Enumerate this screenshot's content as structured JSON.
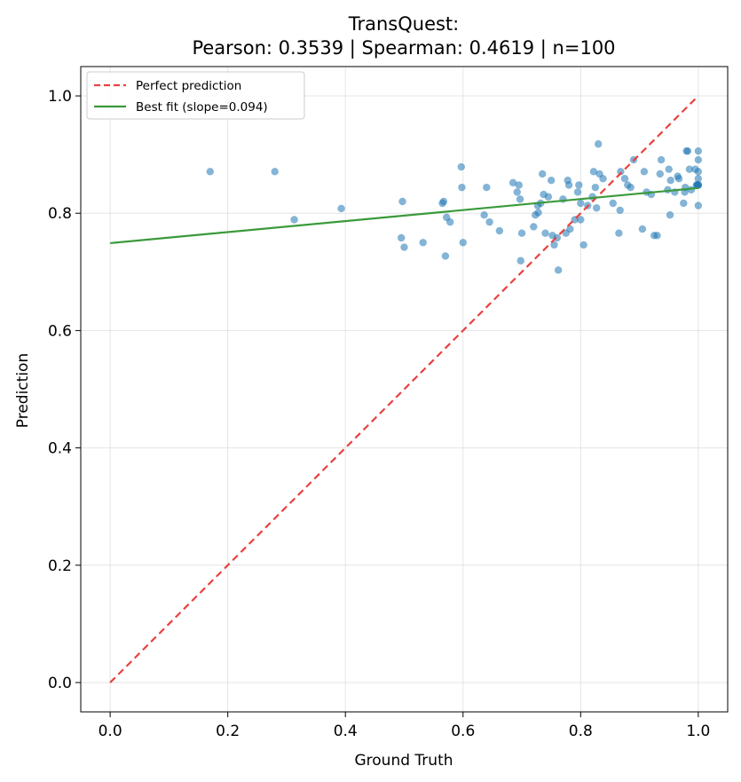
{
  "chart_data": {
    "type": "scatter",
    "title": "TransQuest:",
    "subtitle": "Pearson: 0.3539 | Spearman: 0.4619 | n=100",
    "xlabel": "Ground Truth",
    "ylabel": "Prediction",
    "xlim": [
      -0.05,
      1.05
    ],
    "ylim": [
      -0.05,
      1.05
    ],
    "xticks": [
      "0.0",
      "0.2",
      "0.4",
      "0.6",
      "0.8",
      "1.0"
    ],
    "yticks": [
      "0.0",
      "0.2",
      "0.4",
      "0.6",
      "0.8",
      "1.0"
    ],
    "grid": true,
    "legend_position": "top-left",
    "legend": [
      "Perfect prediction",
      "Best fit (slope=0.094)"
    ],
    "colors": {
      "points": "#1f77b4",
      "perfect_line": "#e8413e",
      "fit_line": "#3a9a3a"
    },
    "perfect_line": {
      "x": [
        0,
        1
      ],
      "y": [
        0,
        1
      ]
    },
    "fit_line": {
      "x": [
        0,
        1
      ],
      "y": [
        0.749,
        0.843
      ]
    },
    "points": [
      [
        0.17,
        0.871
      ],
      [
        0.28,
        0.871
      ],
      [
        0.313,
        0.789
      ],
      [
        0.393,
        0.808
      ],
      [
        0.495,
        0.758
      ],
      [
        0.497,
        0.82
      ],
      [
        0.5,
        0.742
      ],
      [
        0.532,
        0.75
      ],
      [
        0.565,
        0.817
      ],
      [
        0.567,
        0.82
      ],
      [
        0.57,
        0.727
      ],
      [
        0.572,
        0.793
      ],
      [
        0.578,
        0.785
      ],
      [
        0.597,
        0.879
      ],
      [
        0.598,
        0.844
      ],
      [
        0.6,
        0.75
      ],
      [
        0.636,
        0.797
      ],
      [
        0.64,
        0.844
      ],
      [
        0.645,
        0.785
      ],
      [
        0.662,
        0.77
      ],
      [
        0.685,
        0.852
      ],
      [
        0.692,
        0.836
      ],
      [
        0.695,
        0.848
      ],
      [
        0.697,
        0.824
      ],
      [
        0.698,
        0.719
      ],
      [
        0.7,
        0.766
      ],
      [
        0.72,
        0.777
      ],
      [
        0.723,
        0.797
      ],
      [
        0.727,
        0.813
      ],
      [
        0.728,
        0.801
      ],
      [
        0.732,
        0.817
      ],
      [
        0.735,
        0.867
      ],
      [
        0.737,
        0.832
      ],
      [
        0.74,
        0.766
      ],
      [
        0.745,
        0.828
      ],
      [
        0.75,
        0.856
      ],
      [
        0.752,
        0.762
      ],
      [
        0.755,
        0.746
      ],
      [
        0.76,
        0.758
      ],
      [
        0.762,
        0.703
      ],
      [
        0.77,
        0.824
      ],
      [
        0.775,
        0.766
      ],
      [
        0.778,
        0.856
      ],
      [
        0.78,
        0.848
      ],
      [
        0.782,
        0.773
      ],
      [
        0.79,
        0.789
      ],
      [
        0.795,
        0.836
      ],
      [
        0.797,
        0.848
      ],
      [
        0.8,
        0.817
      ],
      [
        0.8,
        0.789
      ],
      [
        0.805,
        0.746
      ],
      [
        0.812,
        0.813
      ],
      [
        0.82,
        0.828
      ],
      [
        0.822,
        0.871
      ],
      [
        0.825,
        0.844
      ],
      [
        0.827,
        0.809
      ],
      [
        0.83,
        0.918
      ],
      [
        0.832,
        0.867
      ],
      [
        0.838,
        0.859
      ],
      [
        0.855,
        0.817
      ],
      [
        0.865,
        0.766
      ],
      [
        0.867,
        0.805
      ],
      [
        0.868,
        0.871
      ],
      [
        0.875,
        0.859
      ],
      [
        0.88,
        0.848
      ],
      [
        0.885,
        0.844
      ],
      [
        0.89,
        0.891
      ],
      [
        0.905,
        0.773
      ],
      [
        0.908,
        0.871
      ],
      [
        0.912,
        0.836
      ],
      [
        0.92,
        0.832
      ],
      [
        0.925,
        0.762
      ],
      [
        0.93,
        0.762
      ],
      [
        0.935,
        0.867
      ],
      [
        0.937,
        0.891
      ],
      [
        0.948,
        0.84
      ],
      [
        0.95,
        0.875
      ],
      [
        0.952,
        0.797
      ],
      [
        0.953,
        0.856
      ],
      [
        0.96,
        0.836
      ],
      [
        0.965,
        0.863
      ],
      [
        0.967,
        0.859
      ],
      [
        0.975,
        0.817
      ],
      [
        0.977,
        0.836
      ],
      [
        0.978,
        0.844
      ],
      [
        0.98,
        0.906
      ],
      [
        0.982,
        0.906
      ],
      [
        0.985,
        0.875
      ],
      [
        0.988,
        0.84
      ],
      [
        0.995,
        0.875
      ],
      [
        0.997,
        0.848
      ],
      [
        0.998,
        0.848
      ],
      [
        0.999,
        0.848
      ],
      [
        1.0,
        0.906
      ],
      [
        1.0,
        0.891
      ],
      [
        1.0,
        0.871
      ],
      [
        1.0,
        0.859
      ],
      [
        1.0,
        0.848
      ],
      [
        1.0,
        0.813
      ],
      [
        1.0,
        0.848
      ]
    ]
  }
}
